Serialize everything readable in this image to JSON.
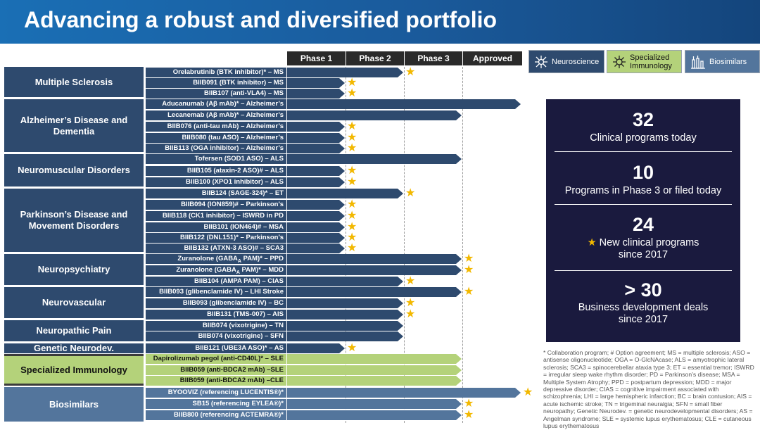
{
  "header": {
    "title": "Advancing a robust and diversified portfolio"
  },
  "phases": [
    "Phase 1",
    "Phase 2",
    "Phase 3",
    "Approved"
  ],
  "legend": [
    {
      "label": "Neuroscience",
      "icon": "neuron-icon"
    },
    {
      "label": "Specialized Immunology",
      "icon": "immune-cell-icon"
    },
    {
      "label": "Biosimilars",
      "icon": "bioreactor-icon"
    }
  ],
  "colors": {
    "neuroscience": "#2e4a6e",
    "immunology": "#b4d27a",
    "biosimilars": "#53759c",
    "star": "#f2b800"
  },
  "categories": [
    "Multiple Sclerosis",
    "Alzheimer’s Disease and Dementia",
    "Neuromuscular Disorders",
    "Parkinson’s Disease and Movement Disorders",
    "Neuropsychiatry",
    "Neurovascular",
    "Neuropathic Pain",
    "Genetic Neurodev.",
    "Specialized Immunology",
    "Biosimilars"
  ],
  "programs": [
    {
      "label": "Orelabrutinib (BTK inhibitor)* – MS",
      "stage": 2,
      "new": true
    },
    {
      "label": "BIIB091 (BTK inhibitor) – MS",
      "stage": 1,
      "new": true
    },
    {
      "label": "BIIB107 (anti-VLA4) – MS",
      "stage": 1,
      "new": true
    },
    {
      "label": "Aducanumab (Aβ mAb)* – Alzheimer’s",
      "stage": 4,
      "new": false
    },
    {
      "label": "Lecanemab (Aβ mAb)* – Alzheimer’s",
      "stage": 3,
      "new": false
    },
    {
      "label": "BIIB076 (anti-tau mAb) – Alzheimer’s",
      "stage": 1,
      "new": true
    },
    {
      "label": "BIIB080 (tau ASO) – Alzheimer’s",
      "stage": 1,
      "new": true
    },
    {
      "label": "BIIB113 (OGA inhibitor) – Alzheimer’s",
      "stage": 1,
      "new": true
    },
    {
      "label": "Tofersen (SOD1 ASO) – ALS",
      "stage": 3,
      "new": false
    },
    {
      "label": "BIIB105 (ataxin-2 ASO)# – ALS",
      "stage": 1,
      "new": true
    },
    {
      "label": "BIIB100 (XPO1 inhibitor) – ALS",
      "stage": 1,
      "new": true
    },
    {
      "label": "BIIB124 (SAGE-324)* – ET",
      "stage": 2,
      "new": true
    },
    {
      "label": "BIIB094 (ION859)# – Parkinson’s",
      "stage": 1,
      "new": true
    },
    {
      "label": "BIIB118 (CK1 inhibitor) – ISWRD in PD",
      "stage": 1,
      "new": true
    },
    {
      "label": "BIIB101 (ION464)# – MSA",
      "stage": 1,
      "new": true
    },
    {
      "label": "BIIB122 (DNL151)* – Parkinson’s",
      "stage": 1,
      "new": true
    },
    {
      "label": "BIIB132 (ATXN-3 ASO)# – SCA3",
      "stage": 1,
      "new": true
    },
    {
      "label": "Zuranolone (GABAA PAM)* – PPD",
      "stage": 3,
      "new": true
    },
    {
      "label": "Zuranolone (GABAA PAM)* – MDD",
      "stage": 3,
      "new": true
    },
    {
      "label": "BIIB104 (AMPA PAM) – CIAS",
      "stage": 2,
      "new": true
    },
    {
      "label": "BIIB093 (glibenclamide IV) – LHI Stroke",
      "stage": 3,
      "new": true
    },
    {
      "label": "BIIB093 (glibenclamide IV) – BC",
      "stage": 2,
      "new": true
    },
    {
      "label": "BIIB131 (TMS-007) – AIS",
      "stage": 2,
      "new": true
    },
    {
      "label": "BIIB074 (vixotrigine) – TN",
      "stage": 2,
      "new": false
    },
    {
      "label": "BIIB074 (vixotrigine) – SFN",
      "stage": 2,
      "new": false
    },
    {
      "label": "BIIB121 (UBE3A ASO)* – AS",
      "stage": 1,
      "new": true
    },
    {
      "label": "Dapirolizumab pegol (anti-CD40L)* – SLE",
      "stage": 3,
      "new": false
    },
    {
      "label": "BIIB059 (anti-BDCA2 mAb) –SLE",
      "stage": 3,
      "new": false
    },
    {
      "label": "BIIB059 (anti-BDCA2 mAb) –CLE",
      "stage": 3,
      "new": false
    },
    {
      "label": "BYOOVIZ (referencing LUCENTIS®)*",
      "stage": 4,
      "new": true
    },
    {
      "label": "SB15 (referencing EYLEA®)*",
      "stage": 3,
      "new": true
    },
    {
      "label": "BIIB800 (referencing ACTEMRA®)*",
      "stage": 3,
      "new": true
    }
  ],
  "stats": [
    {
      "value": "32",
      "text": "Clinical programs today"
    },
    {
      "value": "10",
      "text": "Programs in Phase 3 or filed today"
    },
    {
      "value": "24",
      "text": "New clinical programs since 2017"
    },
    {
      "value": "> 30",
      "text": "Business development deals since 2017"
    }
  ],
  "footnote": "* Collaboration program; # Option agreement; MS = multiple sclerosis; ASO = antisense oligonucleotide; OGA = O-GlcNAcase; ALS = amyotrophic lateral sclerosis; SCA3 = spinocerebellar ataxia type 3; ET = essential tremor; ISWRD = irregular sleep wake rhythm disorder; PD = Parkinson’s disease; MSA = Multiple System Atrophy; PPD = postpartum depression; MDD = major depressive disorder; CIAS = cognitive impairment associated with schizophrenia; LHI = large hemispheric infarction; BC = brain contusion; AIS = acute ischemic stroke; TN = trigeminal neuralgia; SFN = small fiber neuropathy; Genetic Neurodev. = genetic neurodevelopmental disorders; AS = Angelman syndrome; SLE = systemic lupus erythematosus; CLE = cutaneous lupus erythematosus"
}
